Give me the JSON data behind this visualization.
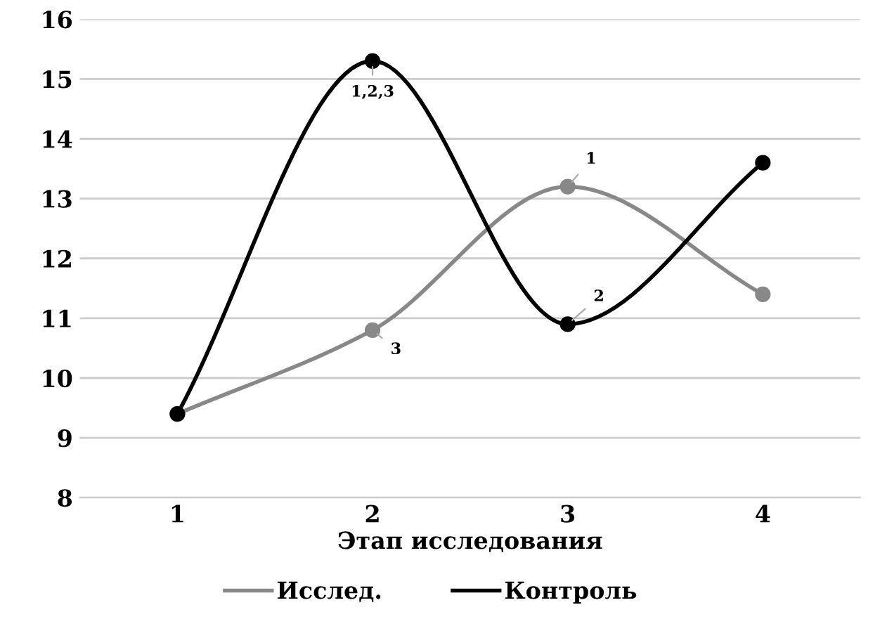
{
  "chart_data": {
    "type": "line",
    "xlabel": "Этап исследования",
    "categories": [
      "1",
      "2",
      "3",
      "4"
    ],
    "series": [
      {
        "name": "Исслед.",
        "color": "#888888",
        "values": [
          9.4,
          10.8,
          13.2,
          11.4
        ]
      },
      {
        "name": "Контроль",
        "color": "#000000",
        "values": [
          9.4,
          15.3,
          10.9,
          13.6
        ]
      }
    ],
    "ylim": [
      8,
      16
    ],
    "yticks": [
      8,
      9,
      10,
      11,
      12,
      13,
      14,
      15,
      16
    ],
    "grid": "y",
    "legend": "bottom",
    "marker": "circle",
    "line_style": "solid",
    "annotations": [
      {
        "text": "1,2,3",
        "x": "2",
        "y": 15.3
      },
      {
        "text": "3",
        "x": "2",
        "y": 10.8
      },
      {
        "text": "1",
        "x": "3",
        "y": 13.2
      },
      {
        "text": "2",
        "x": "3",
        "y": 10.9
      }
    ]
  }
}
